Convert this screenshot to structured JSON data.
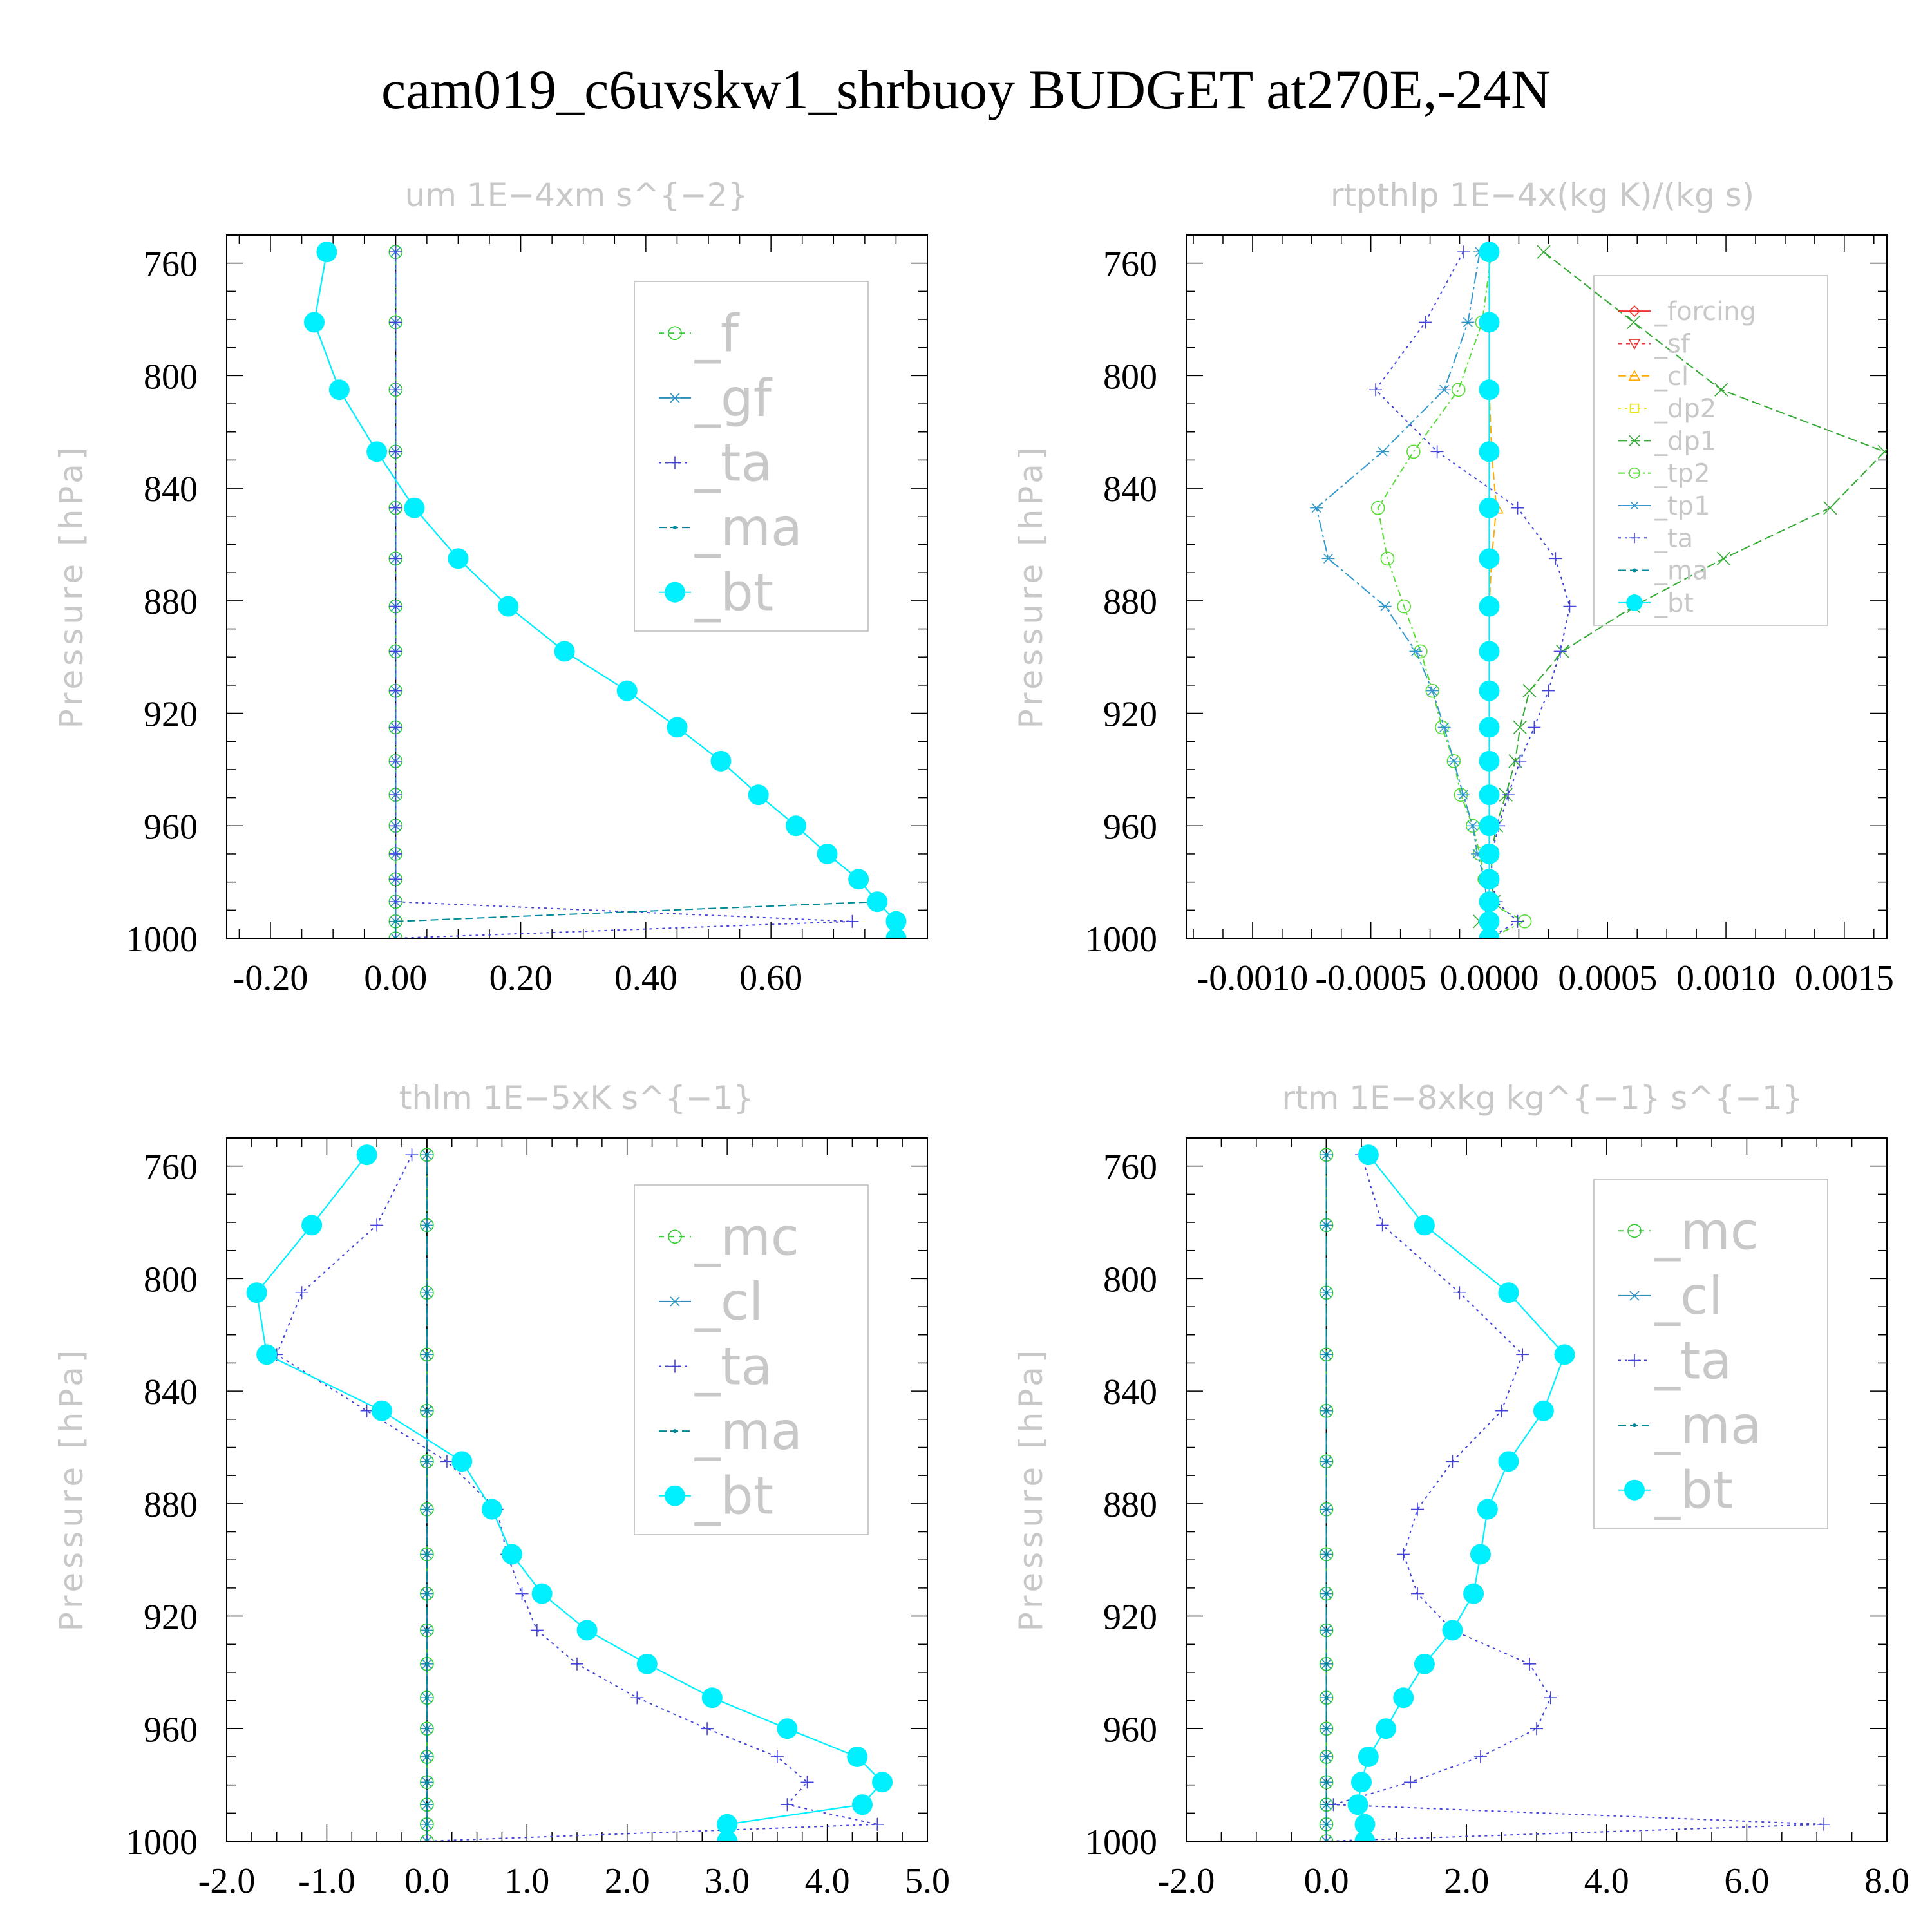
{
  "title": "cam019_c6uvskw1_shrbuoy  BUDGET at270E,-24N",
  "chart_data": [
    {
      "type": "line",
      "title": "um  1E−4xm s^{−2}",
      "ylabel": "Pressure [hPa]",
      "xlabel": "",
      "xlim": [
        -0.27,
        0.85
      ],
      "ylim": [
        1000,
        750
      ],
      "xticks": [
        -0.2,
        0.0,
        0.2,
        0.4,
        0.6
      ],
      "xtick_labels": [
        "-0.20",
        "0.00",
        "0.20",
        "0.40",
        "0.60"
      ],
      "yticks": [
        760,
        800,
        840,
        880,
        920,
        960,
        1000
      ],
      "ytick_labels": [
        "760",
        "800",
        "840",
        "880",
        "920",
        "960",
        "1000"
      ],
      "grid": false,
      "legend_position": "top-right",
      "legend_font": 80,
      "pressure": [
        756,
        781,
        805,
        827,
        847,
        865,
        882,
        898,
        912,
        925,
        937,
        949,
        960,
        970,
        979,
        987,
        994,
        1000
      ],
      "series": [
        {
          "name": "_f",
          "color": "#33cc33",
          "dash": "8,8",
          "marker": "circle-open",
          "x": [
            0,
            0,
            0,
            0,
            0,
            0,
            0,
            0,
            0,
            0,
            0,
            0,
            0,
            0,
            0,
            0,
            0,
            0
          ]
        },
        {
          "name": "_gf",
          "color": "#2a8fbd",
          "dash": "18,6,4,6",
          "marker": "asterisk",
          "x": [
            0,
            0,
            0,
            0,
            0,
            0,
            0,
            0,
            0,
            0,
            0,
            0,
            0,
            0,
            0,
            0,
            0,
            0
          ]
        },
        {
          "name": "_ta",
          "color": "#4444dd",
          "dash": "4,6",
          "marker": "plus",
          "x": [
            0,
            0,
            0,
            0,
            0,
            0,
            0,
            0,
            0,
            0,
            0,
            0,
            0,
            0,
            0,
            0,
            0.73,
            0
          ]
        },
        {
          "name": "_ma",
          "color": "#008899",
          "dash": "12,6",
          "marker": "dot",
          "x": [
            -0.11,
            -0.13,
            -0.09,
            -0.03,
            0.03,
            0.1,
            0.18,
            0.27,
            0.37,
            0.45,
            0.52,
            0.58,
            0.64,
            0.69,
            0.74,
            0.77,
            0.0,
            0.0
          ]
        },
        {
          "name": "_bt",
          "color": "#00f0ff",
          "dash": "",
          "marker": "filled-circle",
          "x": [
            -0.11,
            -0.13,
            -0.09,
            -0.03,
            0.03,
            0.1,
            0.18,
            0.27,
            0.37,
            0.45,
            0.52,
            0.58,
            0.64,
            0.69,
            0.74,
            0.77,
            0.8,
            0.8
          ]
        }
      ]
    },
    {
      "type": "line",
      "title": "rtpthlp  1E−4x(kg K)/(kg s)",
      "ylabel": "Pressure [hPa]",
      "xlabel": "",
      "xlim": [
        -0.00128,
        0.00168
      ],
      "ylim": [
        1000,
        750
      ],
      "xticks": [
        -0.001,
        -0.0005,
        0.0,
        0.0005,
        0.001,
        0.0015
      ],
      "xtick_labels": [
        "-0.0010",
        "-0.0005",
        "0.0000",
        "0.0005",
        "0.0010",
        "0.0015"
      ],
      "yticks": [
        760,
        800,
        840,
        880,
        920,
        960,
        1000
      ],
      "ytick_labels": [
        "760",
        "800",
        "840",
        "880",
        "920",
        "960",
        "1000"
      ],
      "grid": false,
      "legend_position": "top-right",
      "legend_font": 40,
      "pressure": [
        756,
        781,
        805,
        827,
        847,
        865,
        882,
        898,
        912,
        925,
        937,
        949,
        960,
        970,
        979,
        987,
        994,
        1000
      ],
      "series": [
        {
          "name": "_forcing",
          "color": "#ee3333",
          "dash": "",
          "marker": "diamond-open",
          "x": [
            0,
            0,
            0,
            0,
            0,
            0,
            0,
            0,
            0,
            0,
            0,
            0,
            0,
            0,
            0,
            0,
            0,
            0
          ]
        },
        {
          "name": "_sf",
          "color": "#ee3333",
          "dash": "6,6",
          "marker": "triangle-down",
          "x": [
            0,
            0,
            0,
            0,
            0,
            0,
            0,
            0,
            0,
            0,
            0,
            0,
            0,
            0,
            0,
            0,
            0,
            0
          ]
        },
        {
          "name": "_cl",
          "color": "#ffaa00",
          "dash": "12,6",
          "marker": "triangle-up",
          "x": [
            0,
            0,
            0,
            1e-05,
            3e-05,
            1e-05,
            0,
            0,
            0,
            0,
            0,
            0,
            0,
            0,
            0,
            0,
            0,
            0
          ]
        },
        {
          "name": "_dp2",
          "color": "#e8e800",
          "dash": "4,6",
          "marker": "square-open",
          "x": [
            0,
            0,
            0,
            0,
            0,
            0,
            0,
            0,
            0,
            0,
            0,
            0,
            0,
            0,
            0,
            0,
            0,
            0
          ]
        },
        {
          "name": "_dp1",
          "color": "#33aa33",
          "dash": "14,6",
          "marker": "cross",
          "x": [
            0.00023,
            0.00061,
            0.00098,
            0.00167,
            0.00144,
            0.00099,
            0.00061,
            0.00031,
            0.00017,
            0.00013,
            0.00011,
            7e-05,
            3e-05,
            1e-05,
            1e-05,
            2e-05,
            -4e-05,
            0
          ]
        },
        {
          "name": "_tp2",
          "color": "#55dd33",
          "dash": "10,5,3,5",
          "marker": "circle-open",
          "x": [
            1e-05,
            -3e-05,
            -0.00013,
            -0.00032,
            -0.00047,
            -0.00043,
            -0.00036,
            -0.00029,
            -0.00024,
            -0.0002,
            -0.00015,
            -0.00012,
            -7e-05,
            -4e-05,
            -2e-05,
            -1e-05,
            0.00015,
            0
          ]
        },
        {
          "name": "_tp1",
          "color": "#3399cc",
          "dash": "18,5,4,5",
          "marker": "asterisk",
          "x": [
            -4e-05,
            -9e-05,
            -0.00019,
            -0.00045,
            -0.00073,
            -0.00068,
            -0.00044,
            -0.00031,
            -0.00024,
            -0.00019,
            -0.00015,
            -0.00011,
            -7e-05,
            -5e-05,
            -2e-05,
            -1e-05,
            -2e-05,
            0
          ]
        },
        {
          "name": "_ta",
          "color": "#4444dd",
          "dash": "4,6",
          "marker": "plus",
          "x": [
            -0.00011,
            -0.00027,
            -0.00048,
            -0.00022,
            0.00012,
            0.00028,
            0.00034,
            0.0003,
            0.00025,
            0.00019,
            0.00013,
            8e-05,
            4e-05,
            1e-05,
            1e-05,
            3e-05,
            0.00012,
            0
          ]
        },
        {
          "name": "_ma",
          "color": "#008899",
          "dash": "12,6",
          "marker": "dot",
          "x": [
            0,
            0,
            0,
            0,
            0,
            0,
            0,
            0,
            0,
            0,
            0,
            0,
            0,
            0,
            0,
            0,
            0,
            0
          ]
        },
        {
          "name": "_bt",
          "color": "#00f0ff",
          "dash": "",
          "marker": "filled-circle",
          "x": [
            0,
            0,
            0,
            0,
            0,
            0,
            0,
            0,
            0,
            0,
            0,
            0,
            0,
            0,
            0,
            0,
            0,
            0
          ]
        }
      ]
    },
    {
      "type": "line",
      "title": "thlm  1E−5xK s^{−1}",
      "ylabel": "Pressure [hPa]",
      "xlabel": "",
      "xlim": [
        -2.0,
        5.0
      ],
      "ylim": [
        1000,
        750
      ],
      "xticks": [
        -2.0,
        -1.0,
        0.0,
        1.0,
        2.0,
        3.0,
        4.0,
        5.0
      ],
      "xtick_labels": [
        "-2.0",
        "-1.0",
        "0.0",
        "1.0",
        "2.0",
        "3.0",
        "4.0",
        "5.0"
      ],
      "yticks": [
        760,
        800,
        840,
        880,
        920,
        960,
        1000
      ],
      "ytick_labels": [
        "760",
        "800",
        "840",
        "880",
        "920",
        "960",
        "1000"
      ],
      "grid": false,
      "legend_position": "top-right",
      "legend_font": 80,
      "pressure": [
        756,
        781,
        805,
        827,
        847,
        865,
        882,
        898,
        912,
        925,
        937,
        949,
        960,
        970,
        979,
        987,
        994,
        1000
      ],
      "series": [
        {
          "name": "_mc",
          "color": "#33cc33",
          "dash": "8,8",
          "marker": "circle-open",
          "x": [
            0,
            0,
            0,
            0,
            0,
            0,
            0,
            0,
            0,
            0,
            0,
            0,
            0,
            0,
            0,
            0,
            0,
            0
          ]
        },
        {
          "name": "_cl",
          "color": "#2a8fbd",
          "dash": "18,6,4,6",
          "marker": "asterisk",
          "x": [
            0,
            0,
            0,
            0,
            0,
            0,
            0,
            0,
            0,
            0,
            0,
            0,
            0,
            0,
            0,
            0,
            0,
            0
          ]
        },
        {
          "name": "_ta",
          "color": "#4444dd",
          "dash": "4,6",
          "marker": "plus",
          "x": [
            -0.15,
            -0.5,
            -1.25,
            -1.5,
            -0.6,
            0.2,
            0.7,
            0.8,
            0.95,
            1.1,
            1.5,
            2.1,
            2.8,
            3.5,
            3.8,
            3.6,
            4.5,
            0
          ]
        },
        {
          "name": "_ma",
          "color": "#008899",
          "dash": "12,6",
          "marker": "dot",
          "x": [
            0,
            0,
            0,
            0,
            0,
            0,
            0,
            0,
            0,
            0,
            0,
            0,
            0,
            0,
            0,
            0,
            0,
            0
          ]
        },
        {
          "name": "_bt",
          "color": "#00f0ff",
          "dash": "",
          "marker": "filled-circle",
          "x": [
            -0.6,
            -1.15,
            -1.7,
            -1.6,
            -0.45,
            0.35,
            0.65,
            0.85,
            1.15,
            1.6,
            2.2,
            2.85,
            3.6,
            4.3,
            4.55,
            4.35,
            3.0,
            3.0
          ]
        }
      ]
    },
    {
      "type": "line",
      "title": "rtm  1E−8xkg kg^{−1} s^{−1}",
      "ylabel": "Pressure [hPa]",
      "xlabel": "",
      "xlim": [
        -2.0,
        8.0
      ],
      "ylim": [
        1000,
        750
      ],
      "xticks": [
        -2.0,
        0.0,
        2.0,
        4.0,
        6.0,
        8.0
      ],
      "xtick_labels": [
        "-2.0",
        "0.0",
        "2.0",
        "4.0",
        "6.0",
        "8.0"
      ],
      "yticks": [
        760,
        800,
        840,
        880,
        920,
        960,
        1000
      ],
      "ytick_labels": [
        "760",
        "800",
        "840",
        "880",
        "920",
        "960",
        "1000"
      ],
      "grid": false,
      "legend_position": "top-right",
      "legend_font": 80,
      "pressure": [
        756,
        781,
        805,
        827,
        847,
        865,
        882,
        898,
        912,
        925,
        937,
        949,
        960,
        970,
        979,
        987,
        994,
        1000
      ],
      "series": [
        {
          "name": "_mc",
          "color": "#33cc33",
          "dash": "8,8",
          "marker": "circle-open",
          "x": [
            0,
            0,
            0,
            0,
            0,
            0,
            0,
            0,
            0,
            0,
            0,
            0,
            0,
            0,
            0,
            0,
            0,
            0
          ]
        },
        {
          "name": "_cl",
          "color": "#2a8fbd",
          "dash": "18,6,4,6",
          "marker": "asterisk",
          "x": [
            0,
            0,
            0,
            0,
            0,
            0,
            0,
            0,
            0,
            0,
            0,
            0,
            0,
            0,
            0,
            0,
            0,
            0
          ]
        },
        {
          "name": "_ta",
          "color": "#4444dd",
          "dash": "4,6",
          "marker": "plus",
          "x": [
            0.5,
            0.8,
            1.9,
            2.8,
            2.5,
            1.8,
            1.3,
            1.1,
            1.3,
            1.8,
            2.9,
            3.2,
            3.0,
            2.2,
            1.2,
            0.1,
            7.1,
            0
          ]
        },
        {
          "name": "_ma",
          "color": "#008899",
          "dash": "12,6",
          "marker": "dot",
          "x": [
            0,
            0,
            0,
            0,
            0,
            0,
            0,
            0,
            0,
            0,
            0,
            0,
            0,
            0,
            0,
            0,
            0,
            0
          ]
        },
        {
          "name": "_bt",
          "color": "#00f0ff",
          "dash": "",
          "marker": "filled-circle",
          "x": [
            0.6,
            1.4,
            2.6,
            3.4,
            3.1,
            2.6,
            2.3,
            2.2,
            2.1,
            1.8,
            1.4,
            1.1,
            0.85,
            0.6,
            0.5,
            0.45,
            0.55,
            0.55
          ]
        }
      ]
    }
  ]
}
